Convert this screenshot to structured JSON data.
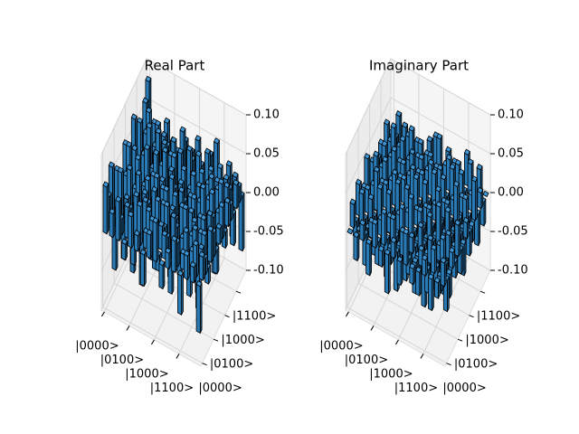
{
  "chart_data": [
    {
      "type": "bar3d",
      "title": "Real Part",
      "color": "#2a7ab5",
      "grid": true,
      "x_categories": [
        "|0000>",
        null,
        null,
        null,
        "|0100>",
        null,
        null,
        null,
        "|1000>",
        null,
        null,
        null,
        "|1100>",
        null,
        null,
        null
      ],
      "y_categories": [
        "|0000>",
        null,
        null,
        null,
        "|0100>",
        null,
        null,
        null,
        "|1000>",
        null,
        null,
        null,
        "|1100>",
        null,
        null,
        null
      ],
      "zlim": [
        -0.1,
        0.1
      ],
      "zticks": [
        {
          "value": -0.1,
          "label": "-0.10"
        },
        {
          "value": -0.05,
          "label": "-0.05"
        },
        {
          "value": 0,
          "label": "0.00"
        },
        {
          "value": 0.05,
          "label": "0.05"
        },
        {
          "value": 0.1,
          "label": "0.10"
        }
      ],
      "values": [
        [
          0.06,
          0.04,
          0.07,
          -0.03,
          0.05,
          0.02,
          -0.05,
          0.06,
          0.03,
          -0.02,
          0.07,
          0.01,
          0.05,
          -0.04,
          0.06,
          0.08
        ],
        [
          0.03,
          -0.05,
          0.02,
          0.06,
          -0.02,
          0.04,
          0.07,
          -0.03,
          0.05,
          0.03,
          -0.06,
          0.02,
          0.04,
          0.06,
          -0.02,
          0.03
        ],
        [
          0.05,
          0.02,
          -0.04,
          0.03,
          0.06,
          -0.03,
          0.02,
          0.05,
          -0.02,
          0.04,
          0.03,
          0.06,
          -0.05,
          0.02,
          0.04,
          -0.03
        ],
        [
          -0.02,
          0.04,
          0.03,
          -0.06,
          0.02,
          0.05,
          -0.03,
          0.02,
          0.06,
          -0.04,
          0.02,
          0.03,
          0.05,
          -0.02,
          0.03,
          0.04
        ],
        [
          0.04,
          -0.03,
          0.05,
          0.02,
          -0.08,
          0.03,
          0.04,
          -0.02,
          0.03,
          0.05,
          -0.03,
          0.02,
          0.04,
          0.03,
          -0.05,
          0.02
        ],
        [
          0.02,
          0.05,
          -0.02,
          0.04,
          0.03,
          -0.05,
          0.02,
          0.04,
          -0.03,
          0.02,
          0.05,
          -0.02,
          0.03,
          0.04,
          0.02,
          -0.04
        ],
        [
          -0.04,
          0.02,
          0.04,
          -0.02,
          0.05,
          0.02,
          -0.03,
          0.03,
          0.02,
          -0.05,
          0.03,
          0.04,
          -0.02,
          0.02,
          0.05,
          0.03
        ],
        [
          0.03,
          0.04,
          -0.03,
          0.05,
          -0.02,
          0.03,
          0.04,
          -0.06,
          0.04,
          0.02,
          -0.03,
          0.05,
          0.02,
          -0.04,
          0.03,
          0.02
        ],
        [
          0.05,
          -0.02,
          0.03,
          0.02,
          0.04,
          -0.04,
          0.02,
          0.03,
          -0.07,
          0.03,
          0.04,
          -0.02,
          0.05,
          0.03,
          -0.03,
          0.04
        ],
        [
          -0.03,
          0.03,
          0.02,
          -0.04,
          0.03,
          0.02,
          -0.05,
          0.04,
          0.02,
          -0.04,
          0.02,
          0.03,
          -0.03,
          0.04,
          0.02,
          -0.02
        ],
        [
          0.02,
          -0.04,
          0.05,
          0.03,
          -0.03,
          0.04,
          0.02,
          -0.02,
          0.03,
          0.05,
          -0.06,
          0.02,
          0.03,
          -0.03,
          0.04,
          0.03
        ],
        [
          0.04,
          0.03,
          -0.02,
          0.02,
          0.05,
          -0.03,
          0.03,
          0.04,
          -0.04,
          0.02,
          0.03,
          -0.05,
          0.02,
          0.03,
          -0.02,
          0.05
        ],
        [
          -0.05,
          0.02,
          0.04,
          -0.03,
          0.02,
          0.03,
          -0.04,
          0.02,
          0.05,
          -0.03,
          0.02,
          0.04,
          -0.09,
          0.02,
          0.03,
          -0.03
        ],
        [
          0.03,
          -0.03,
          0.02,
          0.04,
          -0.05,
          0.02,
          0.03,
          -0.03,
          0.02,
          0.04,
          -0.02,
          0.03,
          0.02,
          -0.04,
          0.02,
          0.03
        ],
        [
          0.02,
          0.04,
          -0.05,
          0.02,
          0.03,
          -0.02,
          0.04,
          0.03,
          -0.03,
          0.02,
          0.05,
          -0.02,
          0.03,
          0.02,
          -0.05,
          0.02
        ],
        [
          -0.06,
          0.03,
          0.02,
          -0.02,
          0.04,
          0.03,
          -0.03,
          0.02,
          0.04,
          -0.02,
          0.03,
          0.02,
          -0.04,
          0.03,
          0.02,
          -0.07
        ]
      ]
    },
    {
      "type": "bar3d",
      "title": "Imaginary Part",
      "color": "#2a7ab5",
      "grid": true,
      "x_categories": [
        "|0000>",
        null,
        null,
        null,
        "|0100>",
        null,
        null,
        null,
        "|1000>",
        null,
        null,
        null,
        "|1100>",
        null,
        null,
        null
      ],
      "y_categories": [
        "|0000>",
        null,
        null,
        null,
        "|0100>",
        null,
        null,
        null,
        "|1000>",
        null,
        null,
        null,
        "|1100>",
        null,
        null,
        null
      ],
      "zlim": [
        -0.1,
        0.1
      ],
      "zticks": [
        {
          "value": -0.1,
          "label": "-0.10"
        },
        {
          "value": -0.05,
          "label": "-0.05"
        },
        {
          "value": 0,
          "label": "0.00"
        },
        {
          "value": 0.05,
          "label": "0.05"
        },
        {
          "value": 0.1,
          "label": "0.10"
        }
      ],
      "values": [
        [
          0.0,
          0.03,
          -0.02,
          0.04,
          -0.03,
          0.02,
          0.05,
          -0.02,
          0.03,
          -0.04,
          0.02,
          0.03,
          -0.02,
          0.04,
          0.02,
          -0.03
        ],
        [
          -0.03,
          0.0,
          0.04,
          -0.02,
          0.03,
          -0.04,
          0.02,
          0.05,
          -0.03,
          0.02,
          0.04,
          -0.02,
          0.03,
          -0.03,
          0.02,
          0.04
        ],
        [
          0.02,
          -0.04,
          0.0,
          0.03,
          -0.02,
          0.05,
          -0.03,
          0.02,
          0.04,
          -0.02,
          0.03,
          0.06,
          -0.03,
          0.02,
          -0.04,
          0.03
        ],
        [
          -0.04,
          0.02,
          -0.03,
          0.0,
          0.04,
          -0.02,
          0.03,
          -0.04,
          0.02,
          0.05,
          -0.03,
          0.02,
          0.04,
          -0.02,
          0.03,
          -0.02
        ],
        [
          0.03,
          -0.03,
          0.02,
          -0.04,
          0.0,
          0.03,
          -0.02,
          0.04,
          -0.05,
          0.02,
          0.03,
          -0.04,
          0.02,
          0.05,
          -0.03,
          0.02
        ],
        [
          -0.02,
          0.04,
          -0.05,
          0.02,
          -0.03,
          0.0,
          0.04,
          -0.02,
          0.03,
          -0.03,
          0.02,
          0.04,
          -0.05,
          0.02,
          0.03,
          -0.04
        ],
        [
          -0.05,
          -0.02,
          0.03,
          -0.03,
          0.02,
          -0.04,
          0.0,
          0.03,
          -0.02,
          0.04,
          -0.03,
          0.02,
          0.03,
          -0.04,
          0.02,
          0.03
        ],
        [
          0.02,
          -0.05,
          -0.02,
          0.04,
          -0.04,
          0.02,
          -0.03,
          0.0,
          0.04,
          -0.02,
          0.03,
          -0.05,
          0.02,
          0.03,
          -0.02,
          0.04
        ],
        [
          -0.03,
          0.03,
          -0.04,
          -0.02,
          0.05,
          -0.03,
          0.02,
          -0.04,
          0.0,
          0.03,
          -0.02,
          0.04,
          -0.03,
          0.02,
          0.05,
          -0.02
        ],
        [
          0.04,
          -0.02,
          0.02,
          -0.05,
          -0.02,
          0.03,
          -0.04,
          0.02,
          -0.03,
          0.0,
          0.04,
          -0.02,
          0.03,
          -0.05,
          0.02,
          0.03
        ],
        [
          -0.02,
          -0.04,
          -0.03,
          0.03,
          -0.03,
          -0.02,
          0.03,
          -0.03,
          0.02,
          -0.04,
          0.0,
          0.03,
          -0.02,
          0.04,
          -0.03,
          0.02
        ],
        [
          -0.03,
          0.02,
          -0.06,
          -0.02,
          0.04,
          -0.04,
          -0.02,
          0.05,
          -0.04,
          0.02,
          -0.03,
          0.0,
          0.04,
          -0.02,
          0.03,
          -0.05
        ],
        [
          0.02,
          -0.03,
          0.03,
          -0.04,
          -0.02,
          0.05,
          -0.03,
          -0.02,
          0.03,
          -0.03,
          0.02,
          -0.04,
          0.0,
          0.03,
          -0.02,
          0.04
        ],
        [
          -0.04,
          0.03,
          -0.02,
          0.02,
          -0.05,
          -0.02,
          0.04,
          -0.03,
          -0.02,
          0.05,
          -0.04,
          0.02,
          -0.03,
          0.0,
          0.04,
          -0.02
        ],
        [
          -0.02,
          -0.02,
          0.04,
          -0.03,
          0.03,
          -0.03,
          -0.02,
          0.02,
          -0.05,
          -0.02,
          0.03,
          -0.03,
          0.02,
          -0.04,
          0.0,
          0.03
        ],
        [
          0.03,
          -0.04,
          -0.03,
          0.02,
          -0.02,
          0.04,
          -0.03,
          -0.04,
          0.02,
          -0.03,
          -0.02,
          0.05,
          -0.04,
          0.02,
          -0.03,
          0.0
        ]
      ]
    }
  ]
}
